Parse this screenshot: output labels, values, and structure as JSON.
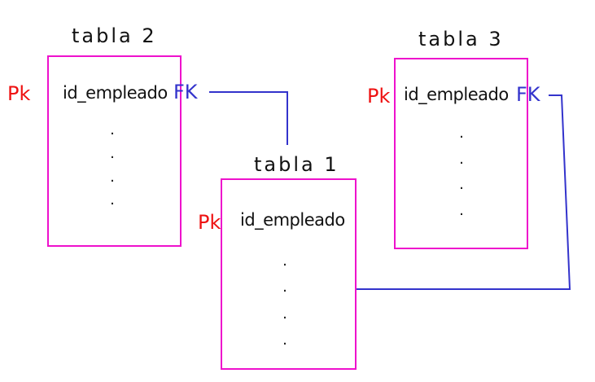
{
  "tables": {
    "tabla1": {
      "title": "tabla 1",
      "pk": "Pk",
      "field": "id_empleado",
      "dots": ".\n.\n.\n."
    },
    "tabla2": {
      "title": "tabla 2",
      "pk": "Pk",
      "fk": "FK",
      "field": "id_empleado",
      "dots": ".\n.\n.\n."
    },
    "tabla3": {
      "title": "tabla 3",
      "pk": "Pk",
      "fk": "FK",
      "field": "id_empleado",
      "dots": ".\n.\n.\n."
    }
  },
  "colors": {
    "table_border": "#ee11cc",
    "pk": "#ee1111",
    "fk": "#3333cc",
    "connector": "#3333cc",
    "text": "#111111"
  }
}
